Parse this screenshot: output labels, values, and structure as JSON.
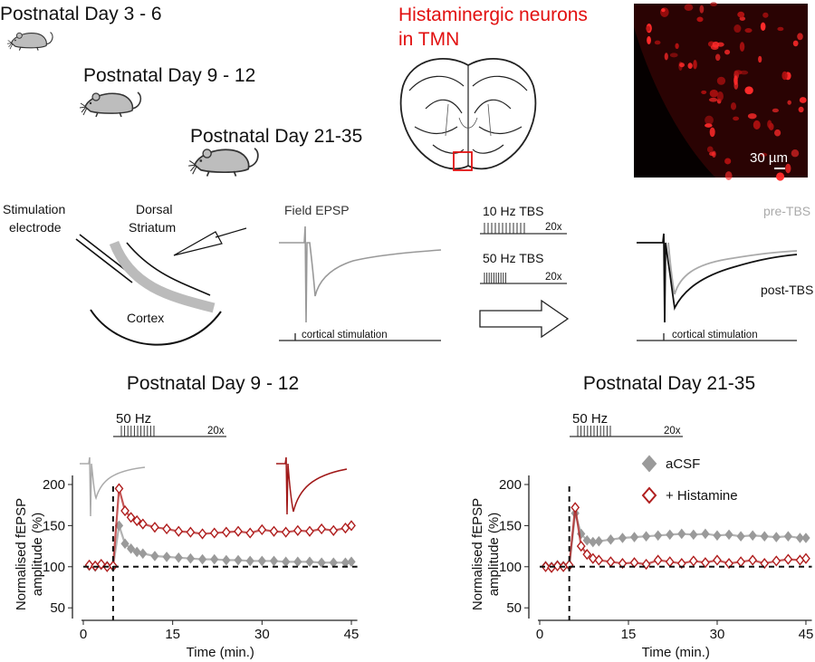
{
  "top": {
    "ages": [
      "Postnatal Day 3 - 6",
      "Postnatal Day 9 - 12",
      "Postnatal Day 21-35"
    ],
    "histology_label": [
      "Histaminergic neurons",
      "in TMN"
    ],
    "scale_bar": "30 µm"
  },
  "schematic": {
    "electrode_label": [
      "Stimulation",
      "electrode"
    ],
    "region_label": [
      "Dorsal",
      "Striatum"
    ],
    "cortex_label": "Cortex",
    "trace_title": "Field EPSP",
    "stim_label": "cortical stimulation",
    "protocols": [
      {
        "label": "10 Hz TBS",
        "repeats": "20x"
      },
      {
        "label": "50 Hz TBS",
        "repeats": "20x"
      }
    ],
    "pre_label": "pre-TBS",
    "post_label": "post-TBS"
  },
  "chart_data": [
    {
      "type": "line",
      "title": "Postnatal Day 9 - 12",
      "stimulus": {
        "label": "50 Hz",
        "repeats": "20x"
      },
      "y_label": [
        "Normalised fEPSP",
        "amplitude (%)"
      ],
      "x_label": "Time (min.)",
      "xlim": [
        0,
        46
      ],
      "ylim": [
        37,
        211
      ],
      "xticks": [
        0,
        15,
        30,
        45
      ],
      "yticks": [
        50,
        100,
        150,
        200
      ],
      "reference_lines": {
        "x": 5,
        "y": 100
      },
      "x": [
        1,
        2,
        3,
        4,
        5,
        6,
        7,
        8,
        9,
        10,
        12,
        14,
        16,
        18,
        20,
        22,
        24,
        26,
        28,
        30,
        32,
        34,
        36,
        38,
        40,
        42,
        44,
        45
      ],
      "series": [
        {
          "color": "#9a9a9a",
          "marker": "filled",
          "values": [
            101,
            100,
            102,
            101,
            100,
            150,
            128,
            122,
            118,
            116,
            113,
            112,
            111,
            110,
            109,
            109,
            108,
            108,
            107,
            107,
            107,
            106,
            106,
            106,
            105,
            105,
            105,
            106
          ]
        },
        {
          "color": "#b01e1e",
          "marker": "open",
          "values": [
            102,
            101,
            103,
            100,
            101,
            195,
            168,
            160,
            156,
            152,
            148,
            146,
            143,
            142,
            140,
            141,
            142,
            143,
            141,
            145,
            143,
            142,
            144,
            143,
            146,
            144,
            147,
            150
          ]
        }
      ]
    },
    {
      "type": "line",
      "title": "Postnatal Day 21-35",
      "stimulus": {
        "label": "50 Hz",
        "repeats": "20x"
      },
      "y_label": [
        "Normalised fEPSP",
        "amplitude (%)"
      ],
      "x_label": "Time (min.)",
      "xlim": [
        0,
        46
      ],
      "ylim": [
        37,
        211
      ],
      "xticks": [
        0,
        15,
        30,
        45
      ],
      "yticks": [
        50,
        100,
        150,
        200
      ],
      "reference_lines": {
        "x": 5,
        "y": 100
      },
      "legend": true,
      "x": [
        1,
        2,
        3,
        4,
        5,
        6,
        7,
        8,
        9,
        10,
        12,
        14,
        16,
        18,
        20,
        22,
        24,
        26,
        28,
        30,
        32,
        34,
        36,
        38,
        40,
        42,
        44,
        45
      ],
      "series": [
        {
          "name": "aCSF",
          "color": "#9a9a9a",
          "marker": "filled",
          "values": [
            101,
            100,
            102,
            101,
            101,
            165,
            140,
            132,
            130,
            131,
            133,
            135,
            136,
            137,
            138,
            139,
            140,
            139,
            140,
            138,
            139,
            137,
            138,
            137,
            136,
            137,
            135,
            135
          ]
        },
        {
          "name": "+ Histamine",
          "color": "#b01e1e",
          "marker": "open",
          "values": [
            100,
            99,
            101,
            100,
            102,
            172,
            125,
            115,
            110,
            108,
            106,
            104,
            105,
            103,
            108,
            106,
            104,
            107,
            105,
            108,
            104,
            106,
            108,
            104,
            107,
            109,
            108,
            110
          ]
        }
      ]
    }
  ]
}
